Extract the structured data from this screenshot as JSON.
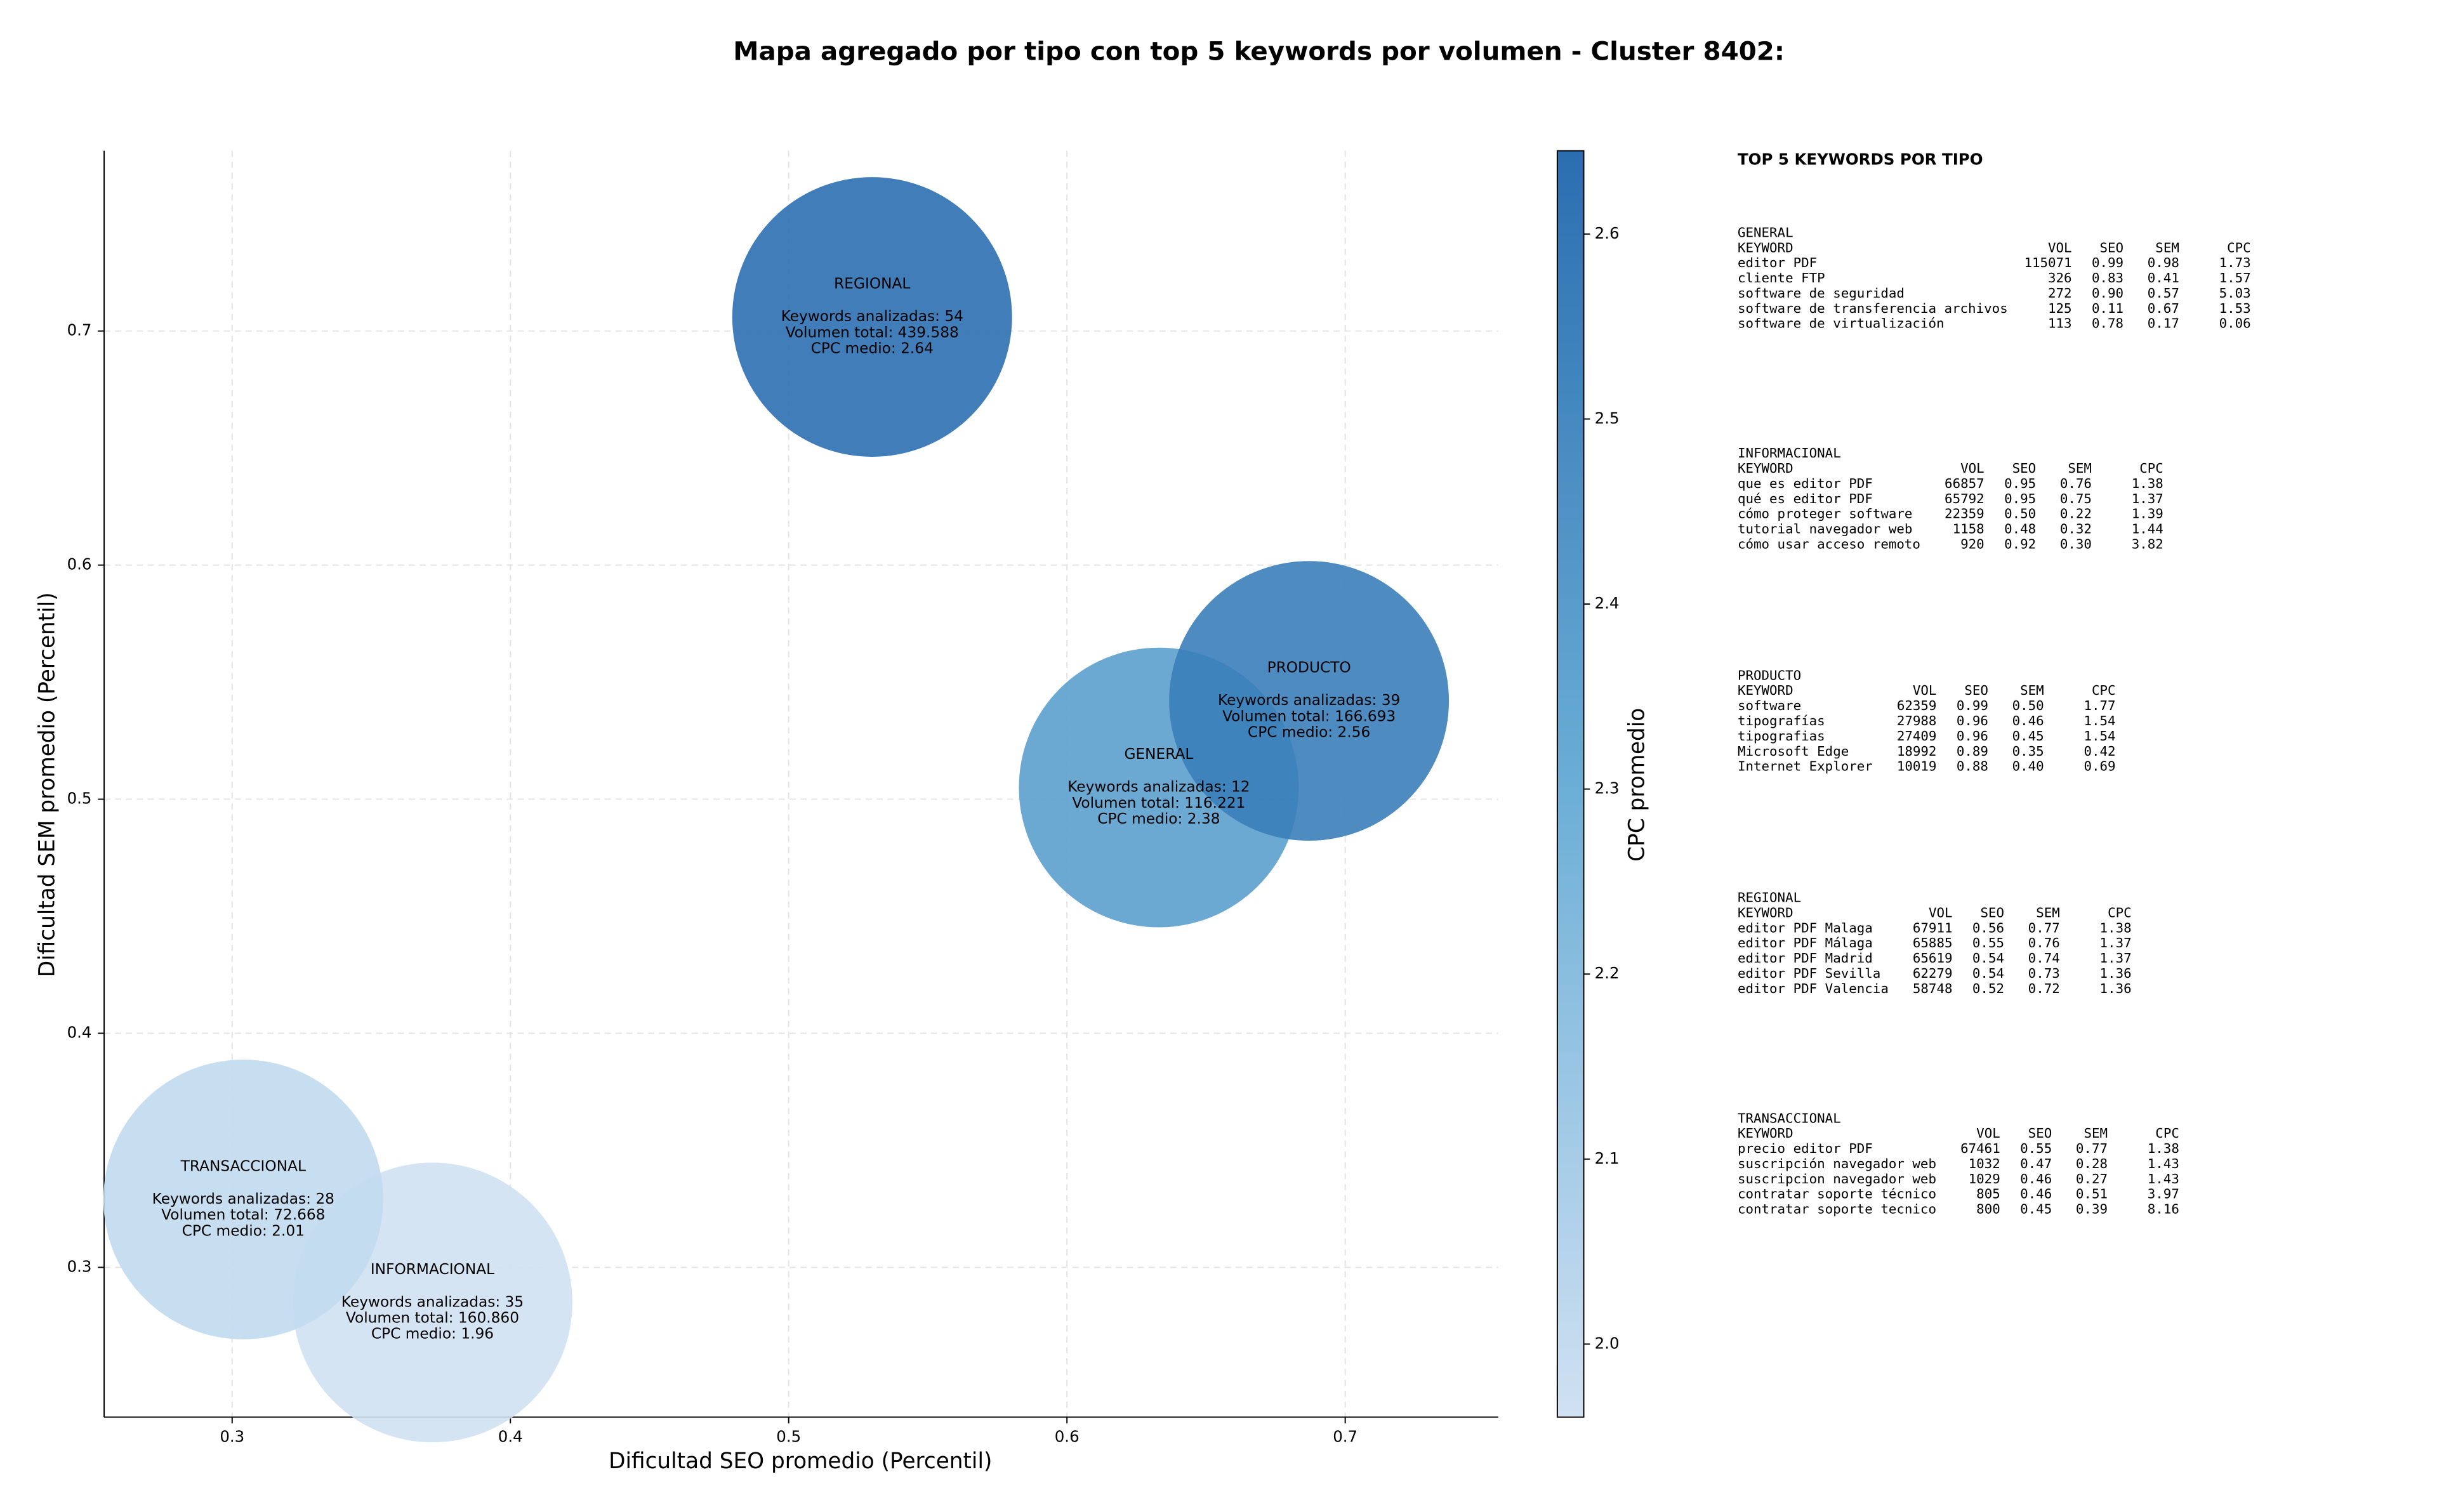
{
  "chart_data": {
    "type": "bubble",
    "title": "Mapa agregado por tipo con top 5 keywords por volumen - Cluster 8402:",
    "x_label": "Dificultad SEO promedio (Percentil)",
    "y_label": "Dificultad SEM promedio (Percentil)",
    "categories": [
      "GENERAL",
      "INFORMACIONAL",
      "PRODUCTO",
      "REGIONAL",
      "TRANSACCIONAL"
    ],
    "x": [
      0.633,
      0.372,
      0.687,
      0.53,
      0.304
    ],
    "values": [
      0.505,
      0.285,
      0.542,
      0.706,
      0.329
    ],
    "cpc": [
      2.38,
      1.96,
      2.56,
      2.64,
      2.01
    ],
    "annotations": [
      [
        "Keywords analizadas: 12",
        "Volumen total: 116.221",
        "CPC medio: 2.38"
      ],
      [
        "Keywords analizadas: 35",
        "Volumen total: 160.860",
        "CPC medio: 1.96"
      ],
      [
        "Keywords analizadas: 39",
        "Volumen total: 166.693",
        "CPC medio: 2.56"
      ],
      [
        "Keywords analizadas: 54",
        "Volumen total: 439.588",
        "CPC medio: 2.64"
      ],
      [
        "Keywords analizadas: 28",
        "Volumen total: 72.668",
        "CPC medio: 2.01"
      ]
    ],
    "xlim": [
      0.254,
      0.755
    ],
    "xticks": [
      0.3,
      0.4,
      0.5,
      0.6,
      0.7
    ],
    "ylim": [
      0.236,
      0.777
    ],
    "yticks": [
      0.3,
      0.4,
      0.5,
      0.6,
      0.7
    ],
    "grid": true,
    "colormap": [
      "#d0e1f2",
      "#6aaed6",
      "#2a6eb0"
    ],
    "colorbar": {
      "label": "CPC promedio",
      "lim": [
        1.9605,
        2.645
      ],
      "ticks": [
        {
          "value": 2,
          "label": "2.0"
        },
        2.1,
        2.2,
        2.3,
        2.4,
        2.5,
        2.6
      ]
    }
  },
  "panel": {
    "title": "TOP 5 KEYWORDS POR TIPO",
    "header": [
      "KEYWORD",
      "VOL",
      "SEO",
      "SEM",
      "CPC"
    ],
    "groups": [
      {
        "name": "GENERAL",
        "rows": [
          [
            "editor PDF",
            "115071",
            "0.99",
            "0.98",
            "1.73"
          ],
          [
            "cliente FTP",
            "326",
            "0.83",
            "0.41",
            "1.57"
          ],
          [
            "software de seguridad",
            "272",
            "0.90",
            "0.57",
            "5.03"
          ],
          [
            "software de transferencia archivos",
            "125",
            "0.11",
            "0.67",
            "1.53"
          ],
          [
            "software de virtualización",
            "113",
            "0.78",
            "0.17",
            "0.06"
          ]
        ]
      },
      {
        "name": "INFORMACIONAL",
        "rows": [
          [
            "que es editor PDF",
            "66857",
            "0.95",
            "0.76",
            "1.38"
          ],
          [
            "qué es editor PDF",
            "65792",
            "0.95",
            "0.75",
            "1.37"
          ],
          [
            "cómo proteger software",
            "22359",
            "0.50",
            "0.22",
            "1.39"
          ],
          [
            "tutorial navegador web",
            "1158",
            "0.48",
            "0.32",
            "1.44"
          ],
          [
            "cómo usar acceso remoto",
            "920",
            "0.92",
            "0.30",
            "3.82"
          ]
        ]
      },
      {
        "name": "PRODUCTO",
        "rows": [
          [
            "software",
            "62359",
            "0.99",
            "0.50",
            "1.77"
          ],
          [
            "tipografías",
            "27988",
            "0.96",
            "0.46",
            "1.54"
          ],
          [
            "tipografias",
            "27409",
            "0.96",
            "0.45",
            "1.54"
          ],
          [
            "Microsoft Edge",
            "18992",
            "0.89",
            "0.35",
            "0.42"
          ],
          [
            "Internet Explorer",
            "10019",
            "0.88",
            "0.40",
            "0.69"
          ]
        ]
      },
      {
        "name": "REGIONAL",
        "rows": [
          [
            "editor PDF Malaga",
            "67911",
            "0.56",
            "0.77",
            "1.38"
          ],
          [
            "editor PDF Málaga",
            "65885",
            "0.55",
            "0.76",
            "1.37"
          ],
          [
            "editor PDF Madrid",
            "65619",
            "0.54",
            "0.74",
            "1.37"
          ],
          [
            "editor PDF Sevilla",
            "62279",
            "0.54",
            "0.73",
            "1.36"
          ],
          [
            "editor PDF Valencia",
            "58748",
            "0.52",
            "0.72",
            "1.36"
          ]
        ]
      },
      {
        "name": "TRANSACCIONAL",
        "rows": [
          [
            "precio editor PDF",
            "67461",
            "0.55",
            "0.77",
            "1.38"
          ],
          [
            "suscripción navegador web",
            "1032",
            "0.47",
            "0.28",
            "1.43"
          ],
          [
            "suscripcion navegador web",
            "1029",
            "0.46",
            "0.27",
            "1.43"
          ],
          [
            "contratar soporte técnico",
            "805",
            "0.46",
            "0.51",
            "3.97"
          ],
          [
            "contratar soporte tecnico",
            "800",
            "0.45",
            "0.39",
            "8.16"
          ]
        ]
      }
    ]
  }
}
